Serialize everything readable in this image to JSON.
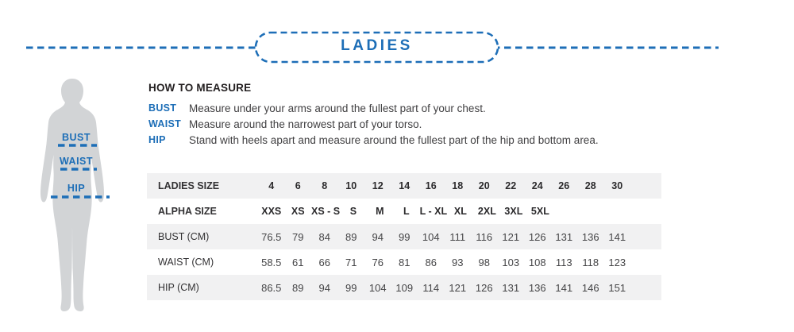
{
  "header": {
    "title": "LADIES"
  },
  "figure": {
    "labels": [
      "BUST",
      "WAIST",
      "HIP"
    ]
  },
  "how_to_measure": {
    "title": "HOW TO MEASURE",
    "items": [
      {
        "label": "BUST",
        "text": "Measure under your arms around the fullest part of your chest."
      },
      {
        "label": "WAIST",
        "text": "Measure around the narrowest part of your torso."
      },
      {
        "label": "HIP",
        "text": "Stand with heels apart and measure around the fullest part of the hip and bottom area."
      }
    ]
  },
  "size_table": {
    "rows": [
      {
        "label": "LADIES SIZE",
        "header": true,
        "values": [
          "4",
          "6",
          "8",
          "10",
          "12",
          "14",
          "16",
          "18",
          "20",
          "22",
          "24",
          "26",
          "28",
          "30"
        ]
      },
      {
        "label": "ALPHA SIZE",
        "header": true,
        "values": [
          "XXS",
          "XS",
          "XS - S",
          "S",
          "M",
          "L",
          "L - XL",
          "XL",
          "2XL",
          "3XL",
          "5XL",
          "",
          "",
          ""
        ]
      },
      {
        "label": "BUST (CM)",
        "header": false,
        "values": [
          "76.5",
          "79",
          "84",
          "89",
          "94",
          "99",
          "104",
          "111",
          "116",
          "121",
          "126",
          "131",
          "136",
          "141"
        ]
      },
      {
        "label": "WAIST (CM)",
        "header": false,
        "values": [
          "58.5",
          "61",
          "66",
          "71",
          "76",
          "81",
          "86",
          "93",
          "98",
          "103",
          "108",
          "113",
          "118",
          "123"
        ]
      },
      {
        "label": "HIP (CM)",
        "header": false,
        "values": [
          "86.5",
          "89",
          "94",
          "99",
          "104",
          "109",
          "114",
          "121",
          "126",
          "131",
          "136",
          "141",
          "146",
          "151"
        ]
      }
    ]
  },
  "colors": {
    "accent_blue": "#1d6eb7",
    "silhouette_gray": "#d2d4d6",
    "row_gray": "#f1f1f2",
    "text_dark": "#231f20"
  }
}
